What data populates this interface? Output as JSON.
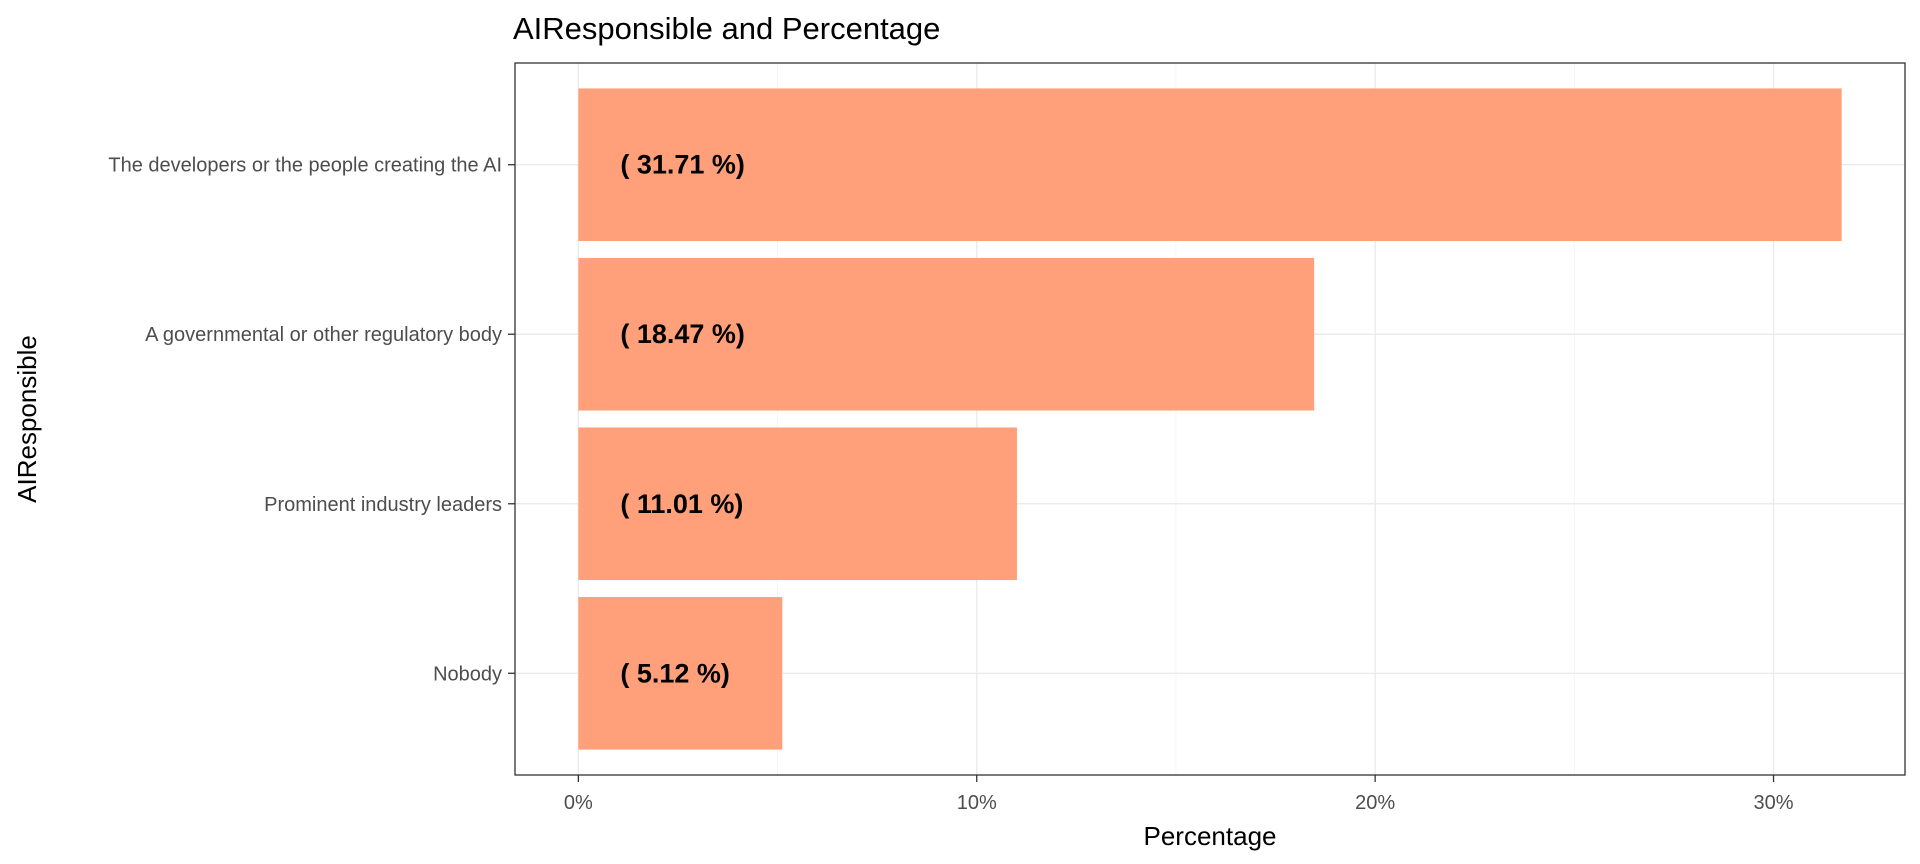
{
  "chart_data": {
    "type": "bar",
    "orientation": "horizontal",
    "title": "AIResponsible and Percentage",
    "xlabel": "Percentage",
    "ylabel": "AIResponsible",
    "categories": [
      "The developers or the people creating the AI",
      "A governmental or other regulatory body",
      "Prominent industry leaders",
      "Nobody"
    ],
    "values": [
      31.71,
      18.47,
      11.01,
      5.12
    ],
    "data_labels": [
      "( 31.71 %)",
      "( 18.47 %)",
      "( 11.01 %)",
      "( 5.12 %)"
    ],
    "x_ticks": [
      0,
      10,
      20,
      30
    ],
    "x_tick_labels": [
      "0%",
      "10%",
      "20%",
      "30%"
    ],
    "xlim": [
      -1.59,
      33.3
    ],
    "grid": true,
    "legend": "none",
    "bar_color": "#FFA07A"
  }
}
